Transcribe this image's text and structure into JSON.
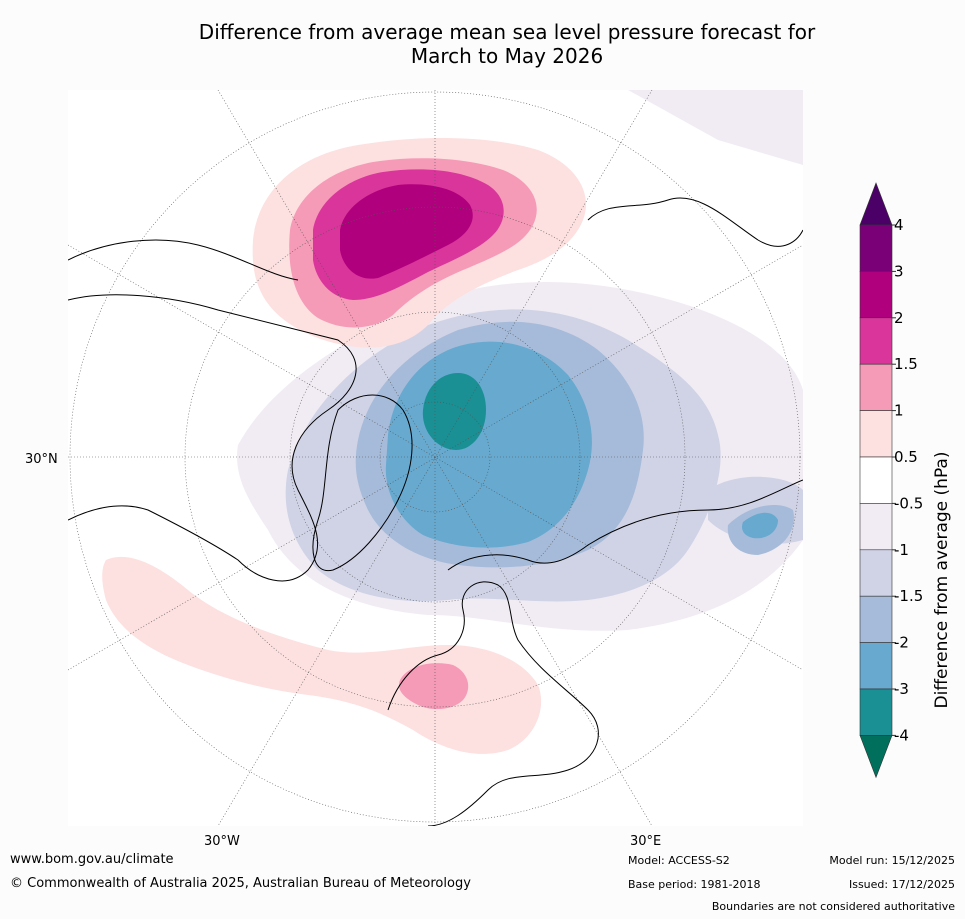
{
  "title": {
    "line1": "Difference from average mean sea level pressure forecast for",
    "line2": "March to May 2026"
  },
  "map": {
    "lon_labels": {
      "left": "30°W",
      "right": "30°E",
      "lat": "30°N"
    }
  },
  "legend": {
    "title": "Difference from average (hPa)",
    "labels": [
      "4",
      "3",
      "2",
      "1.5",
      "1",
      "0.5",
      "-0.5",
      "-1",
      "-1.5",
      "-2",
      "-3",
      "-4"
    ],
    "colors": [
      "#7a0077",
      "#b0007d",
      "#d9359b",
      "#f59ab7",
      "#fde0e0",
      "#ffffff",
      "#f1ecf3",
      "#d0d3e6",
      "#a6bbd9",
      "#67a9cf",
      "#1a8f94"
    ],
    "over_color": "#4b0068",
    "under_color": "#00705c"
  },
  "footer": {
    "website": "www.bom.gov.au/climate",
    "copyright": "© Commonwealth of Australia 2025, Australian Bureau of Meteorology",
    "model": "Model: ACCESS-S2",
    "base_period": "Base period: 1981-2018",
    "model_run": "Model run: 15/12/2025",
    "issued": "Issued: 17/12/2025",
    "boundaries": "Boundaries are not considered authoritative"
  }
}
